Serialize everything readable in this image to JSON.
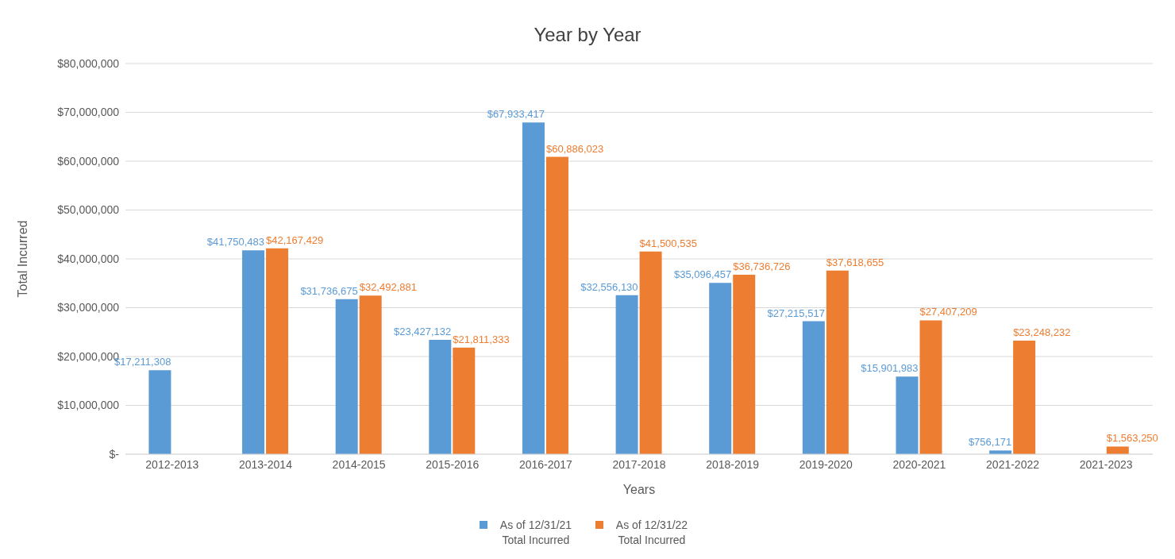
{
  "chart_data": {
    "type": "bar",
    "title": "Year by Year",
    "xlabel": "Years",
    "ylabel": "Total Incurred",
    "categories": [
      "2012-2013",
      "2013-2014",
      "2014-2015",
      "2015-2016",
      "2016-2017",
      "2017-2018",
      "2018-2019",
      "2019-2020",
      "2020-2021",
      "2021-2022",
      "2021-2023"
    ],
    "series": [
      {
        "name": "As of 12/31/21 Total Incurred",
        "color": "#5b9bd5",
        "values": [
          17211308,
          41750483,
          31736675,
          23427132,
          67933417,
          32556130,
          35096457,
          27215517,
          15901983,
          756171,
          null
        ],
        "value_labels": [
          "$17,211,308",
          "$41,750,483",
          "$31,736,675",
          "$23,427,132",
          "$67,933,417",
          "$32,556,130",
          "$35,096,457",
          "$27,215,517",
          "$15,901,983",
          "$756,171",
          null
        ]
      },
      {
        "name": "As of 12/31/22 Total Incurred",
        "color": "#ed7d31",
        "values": [
          null,
          42167429,
          32492881,
          21811333,
          60886023,
          41500535,
          36736726,
          37618655,
          27407209,
          23248232,
          1563250
        ],
        "value_labels": [
          null,
          "$42,167,429",
          "$32,492,881",
          "$21,811,333",
          "$60,886,023",
          "$41,500,535",
          "$36,736,726",
          "$37,618,655",
          "$27,407,209",
          "$23,248,232",
          "$1,563,250"
        ]
      }
    ],
    "ylim": [
      0,
      80000000
    ],
    "yticks": [
      {
        "value": 0,
        "label": "$-"
      },
      {
        "value": 10000000,
        "label": "$10,000,000"
      },
      {
        "value": 20000000,
        "label": "$20,000,000"
      },
      {
        "value": 30000000,
        "label": "$30,000,000"
      },
      {
        "value": 40000000,
        "label": "$40,000,000"
      },
      {
        "value": 50000000,
        "label": "$50,000,000"
      },
      {
        "value": 60000000,
        "label": "$60,000,000"
      },
      {
        "value": 70000000,
        "label": "$70,000,000"
      },
      {
        "value": 80000000,
        "label": "$80,000,000"
      }
    ],
    "grid": "y",
    "legend": "bottom"
  }
}
